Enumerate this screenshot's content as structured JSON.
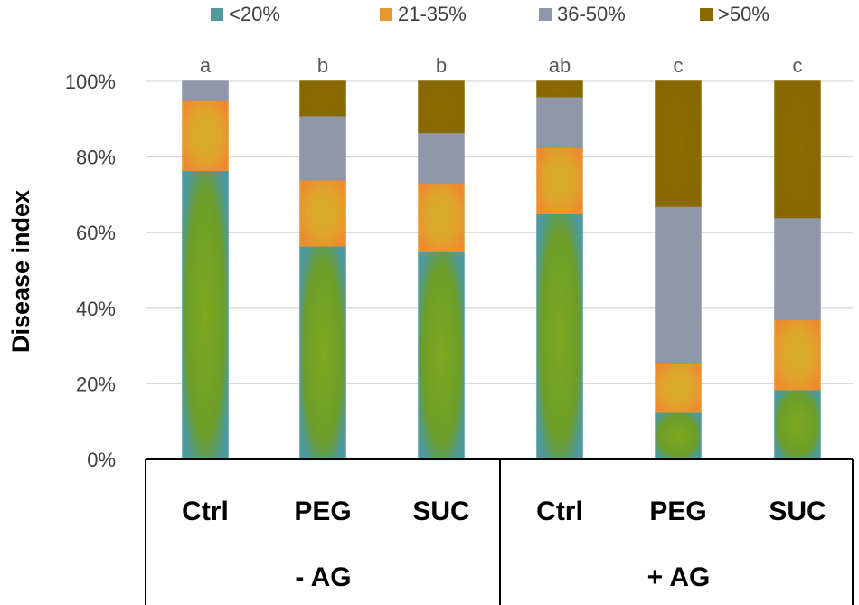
{
  "chart_data": {
    "type": "bar",
    "stacked": true,
    "title": "",
    "xlabel": "",
    "ylabel": "Disease index",
    "ylim": [
      0,
      100
    ],
    "yticks": [
      "0%",
      "20%",
      "40%",
      "60%",
      "80%",
      "100%"
    ],
    "categories": [
      "Ctrl",
      "PEG",
      "SUC",
      "Ctrl",
      "PEG",
      "SUC"
    ],
    "groups": [
      {
        "label": "- AG",
        "categories": [
          0,
          1,
          2
        ]
      },
      {
        "label": "+ AG",
        "categories": [
          3,
          4,
          5
        ]
      }
    ],
    "significance": [
      "a",
      "b",
      "b",
      "ab",
      "c",
      "c"
    ],
    "legend_position": "top",
    "series": [
      {
        "name": "<20%",
        "color": "#4e9a9d",
        "values": [
          76.5,
          56.5,
          55,
          65,
          12.5,
          18.5
        ]
      },
      {
        "name": "21-35%",
        "color": "#e8962e",
        "values": [
          18.5,
          17.5,
          18,
          17.5,
          13,
          18.5
        ]
      },
      {
        "name": "36-50%",
        "color": "#8d97a8",
        "values": [
          5,
          17,
          13.5,
          13.5,
          41.5,
          27
        ]
      },
      {
        "name": ">50%",
        "color": "#8a6a00",
        "values": [
          0,
          9,
          13.5,
          4,
          33,
          36
        ]
      }
    ]
  }
}
